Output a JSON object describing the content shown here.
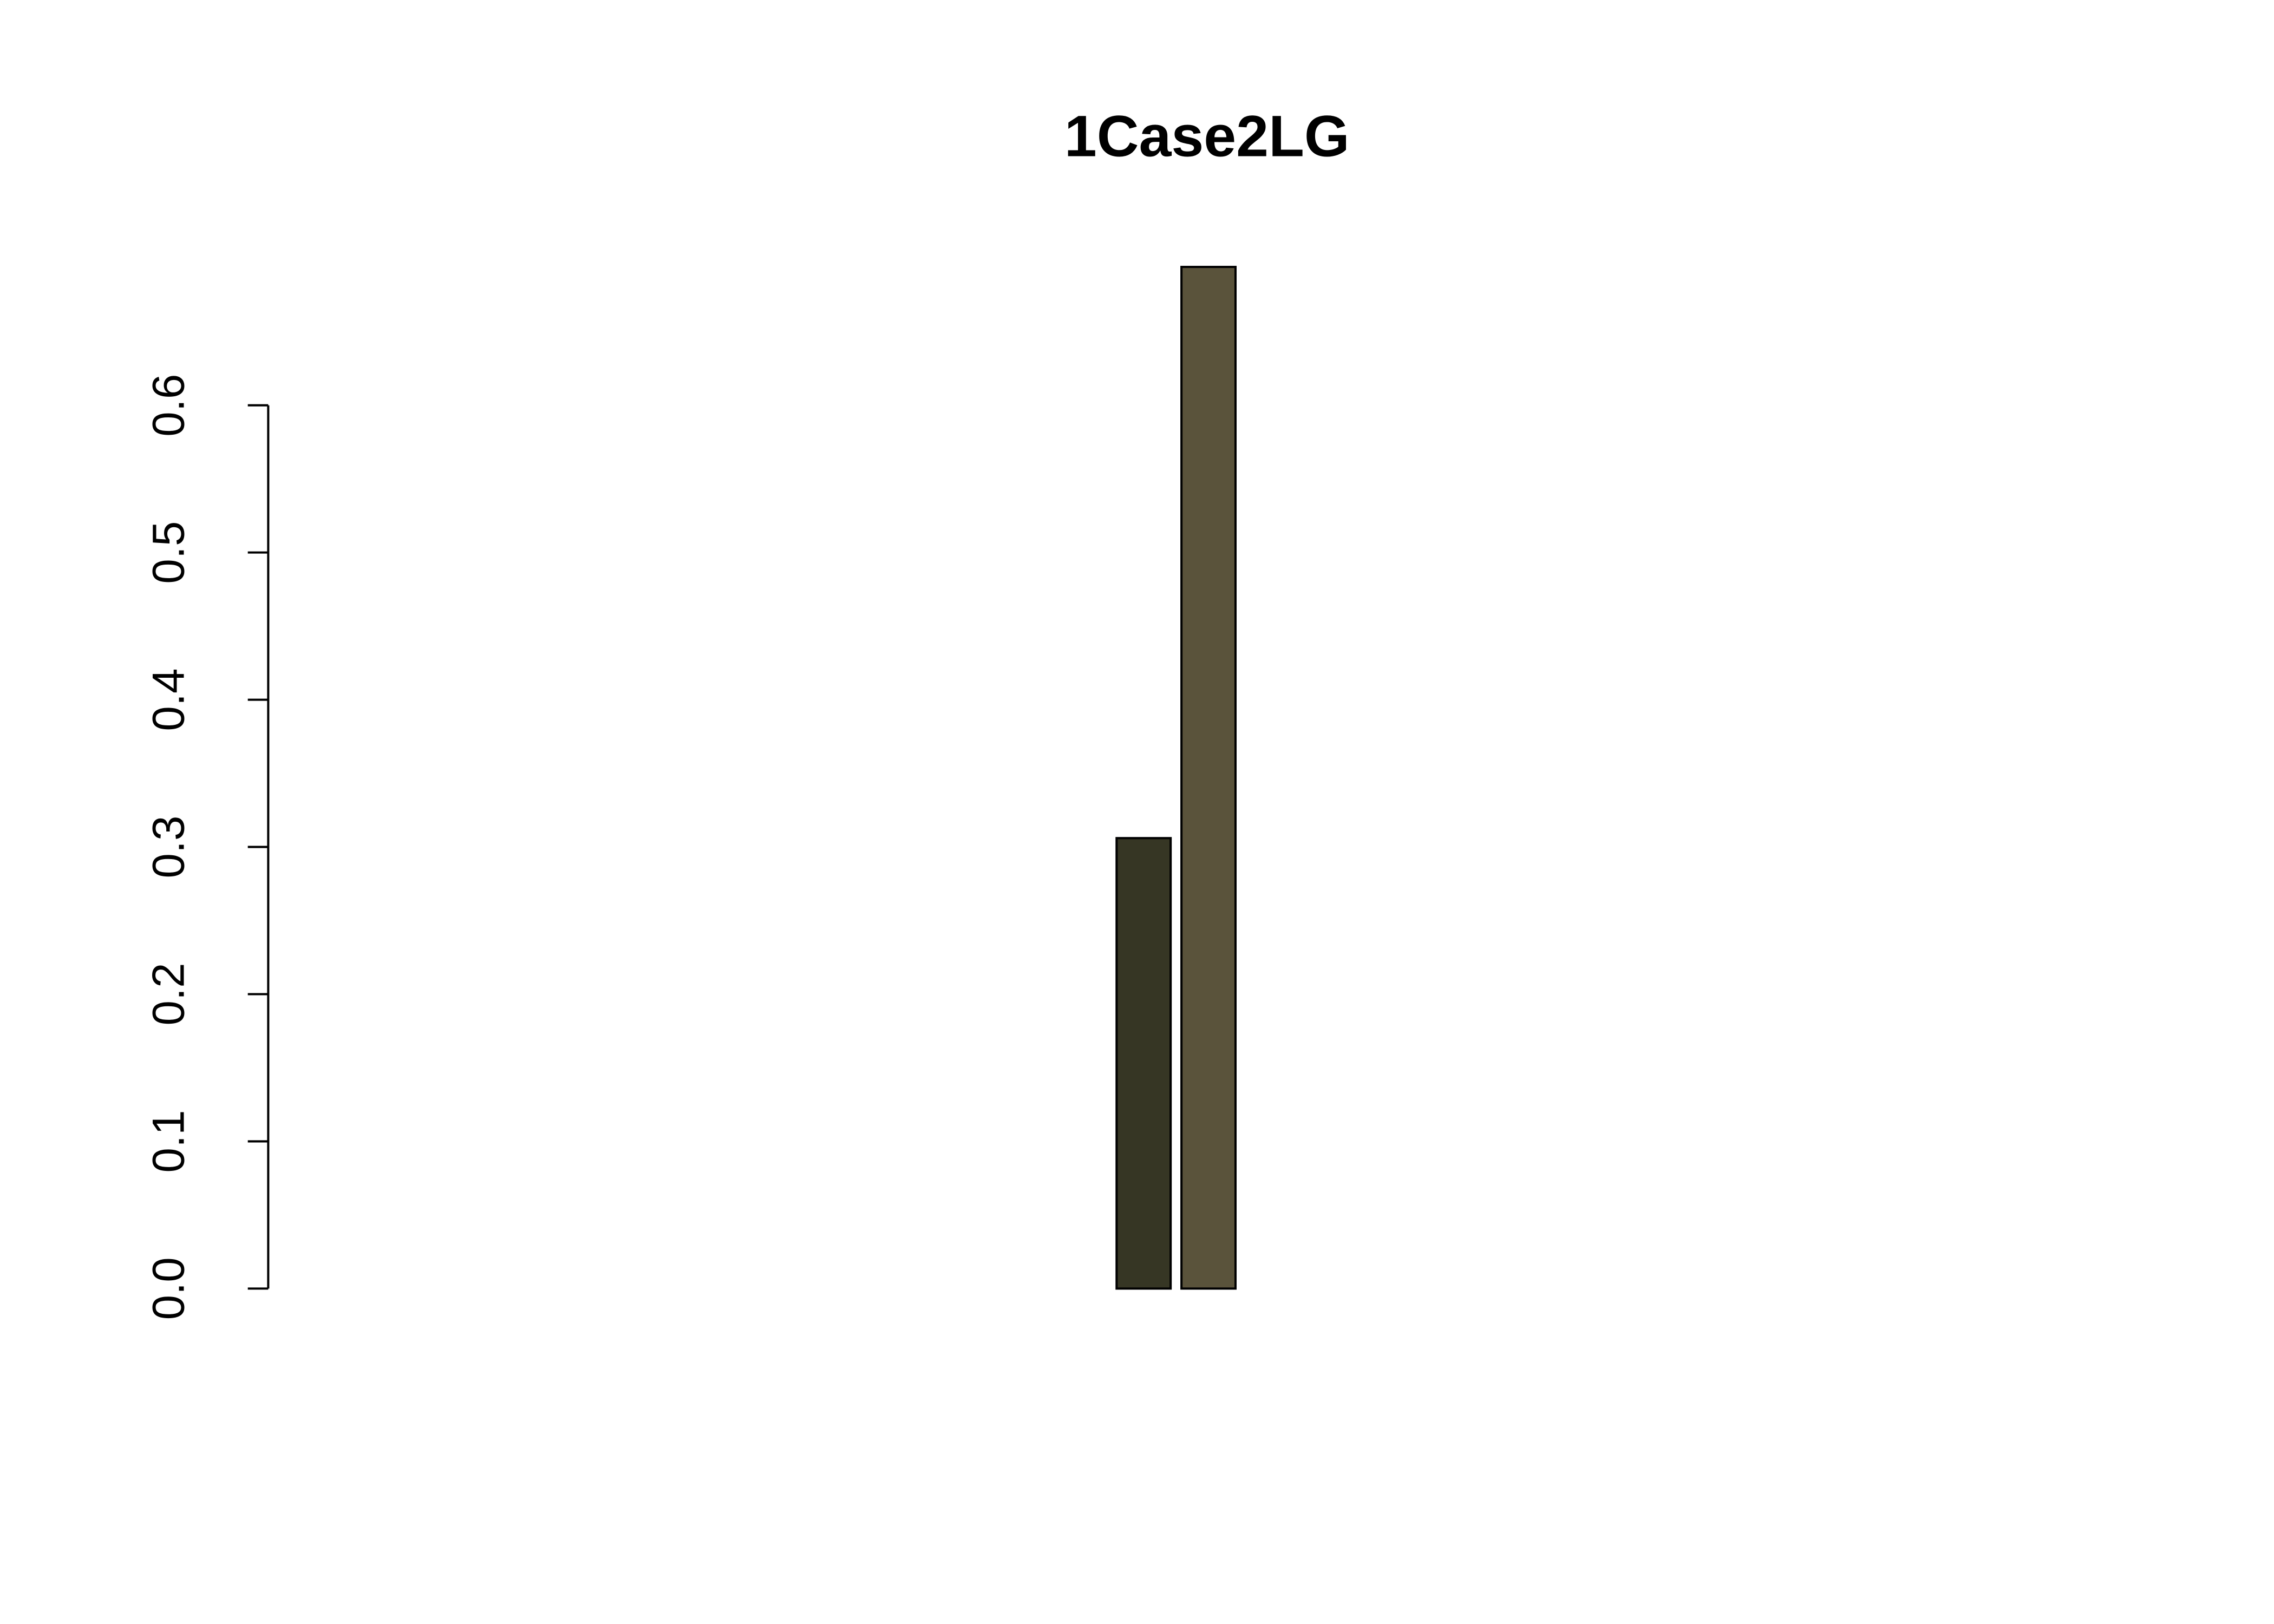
{
  "chart_data": {
    "type": "bar",
    "title": "1Case2LG",
    "categories": [
      null,
      null,
      null,
      null,
      null,
      null,
      null,
      null,
      null,
      null,
      null,
      null,
      null,
      null,
      null,
      null,
      null,
      null,
      null,
      null,
      null,
      null,
      null,
      null,
      null,
      null,
      null
    ],
    "values": [
      0,
      0,
      0,
      0,
      0,
      0,
      0,
      0,
      0,
      0,
      0,
      0,
      0.306,
      0.694,
      0,
      0,
      0,
      0,
      0,
      0,
      0,
      0,
      0,
      0,
      0,
      0,
      0
    ],
    "colors": [
      null,
      null,
      null,
      null,
      null,
      null,
      null,
      null,
      null,
      null,
      null,
      null,
      "#363624",
      "#5a533b",
      null,
      null,
      null,
      null,
      null,
      null,
      null,
      null,
      null,
      null,
      null,
      null,
      null
    ],
    "ylim": [
      0,
      0.694
    ],
    "yticks": [
      {
        "value": 0,
        "label": "0.0"
      },
      0.1,
      0.2,
      0.3,
      0.4,
      0.5,
      0.6
    ]
  }
}
